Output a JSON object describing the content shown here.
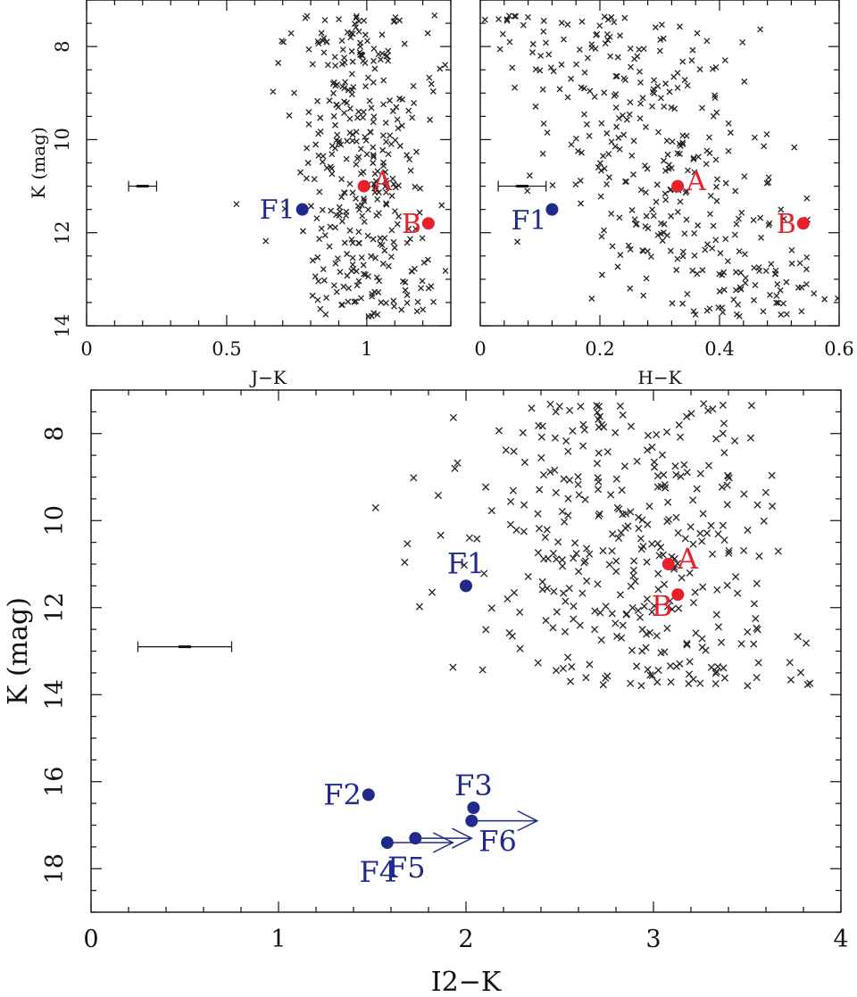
{
  "chart_data": [
    {
      "id": "panel_jk",
      "type": "scatter",
      "xlabel": "J−K",
      "ylabel": "K (mag)",
      "xlim": [
        0,
        1.3
      ],
      "ylim": [
        14,
        7
      ],
      "y_inverted": true,
      "xticks": [
        0,
        0.5,
        1
      ],
      "yticks": [
        8,
        10,
        12,
        14
      ],
      "error_bar": {
        "x": 0.2,
        "y": 11,
        "xerr": 0.05
      },
      "cloud": {
        "x_center": 0.98,
        "x_spread": 0.12,
        "y_center": 10.6,
        "y_spread": 1.6,
        "count": 360,
        "seed": 11
      },
      "highlighted": [
        {
          "name": "A",
          "x": 0.99,
          "y": 11.0,
          "color": "#e8202a",
          "label_pos": "right"
        },
        {
          "name": "B",
          "x": 1.22,
          "y": 11.8,
          "color": "#e8202a",
          "label_pos": "left"
        },
        {
          "name": "F1",
          "x": 0.77,
          "y": 11.5,
          "color": "#1f2a8a",
          "label_pos": "left"
        }
      ],
      "tick_labels_x": [
        "0",
        "0.5",
        "1"
      ],
      "tick_labels_y": [
        "8",
        "10",
        "12",
        "14"
      ]
    },
    {
      "id": "panel_hk",
      "type": "scatter",
      "xlabel": "H−K",
      "ylabel": "",
      "xlim": [
        0,
        0.6
      ],
      "ylim": [
        14,
        7
      ],
      "y_inverted": true,
      "xticks": [
        0,
        0.2,
        0.4,
        0.6
      ],
      "yticks": [
        8,
        10,
        12,
        14
      ],
      "error_bar": {
        "x": 0.07,
        "y": 11,
        "xerr": 0.04
      },
      "cloud": {
        "x_center": 0.3,
        "x_spread": 0.1,
        "y_center": 10.6,
        "y_spread": 1.6,
        "count": 360,
        "seed": 23
      },
      "highlighted": [
        {
          "name": "A",
          "x": 0.33,
          "y": 11.0,
          "color": "#e8202a",
          "label_pos": "right"
        },
        {
          "name": "B",
          "x": 0.54,
          "y": 11.8,
          "color": "#e8202a",
          "label_pos": "left"
        },
        {
          "name": "F1",
          "x": 0.12,
          "y": 11.5,
          "color": "#1f2a8a",
          "label_pos": "below-left"
        }
      ],
      "tick_labels_x": [
        "0",
        "0.2",
        "0.4",
        "0.6"
      ],
      "tick_labels_y": []
    },
    {
      "id": "panel_i2k",
      "type": "scatter",
      "xlabel": "I2−K",
      "ylabel": "K (mag)",
      "xlim": [
        0,
        4
      ],
      "ylim": [
        19,
        7
      ],
      "y_inverted": true,
      "xticks": [
        0,
        1,
        2,
        3,
        4
      ],
      "yticks": [
        8,
        10,
        12,
        14,
        16,
        18
      ],
      "error_bar": {
        "x": 0.5,
        "y": 12.9,
        "xerr": 0.25
      },
      "cloud": {
        "x_center": 2.9,
        "x_spread": 0.45,
        "y_center": 10.6,
        "y_spread": 1.6,
        "count": 360,
        "seed": 37
      },
      "highlighted": [
        {
          "name": "A",
          "x": 3.08,
          "y": 11.0,
          "color": "#e8202a",
          "label_pos": "right"
        },
        {
          "name": "B",
          "x": 3.13,
          "y": 11.7,
          "color": "#e8202a",
          "label_pos": "below-left"
        },
        {
          "name": "F1",
          "x": 2.0,
          "y": 11.5,
          "color": "#1f2a8a",
          "label_pos": "above"
        },
        {
          "name": "F2",
          "x": 1.48,
          "y": 16.3,
          "color": "#1f2a8a",
          "label_pos": "left"
        },
        {
          "name": "F3",
          "x": 2.04,
          "y": 16.6,
          "color": "#1f2a8a",
          "label_pos": "above"
        },
        {
          "name": "F4",
          "x": 1.58,
          "y": 17.4,
          "color": "#1f2a8a",
          "label_pos": "below"
        },
        {
          "name": "F5",
          "x": 1.73,
          "y": 17.3,
          "color": "#1f2a8a",
          "label_pos": "below"
        },
        {
          "name": "F6",
          "x": 2.03,
          "y": 16.9,
          "color": "#1f2a8a",
          "label_pos": "below-right"
        }
      ],
      "arrows": [
        {
          "from_x": 1.58,
          "to_x": 1.93,
          "y": 17.4
        },
        {
          "from_x": 1.73,
          "to_x": 2.03,
          "y": 17.3
        },
        {
          "from_x": 2.03,
          "to_x": 2.38,
          "y": 16.9
        }
      ],
      "tick_labels_x": [
        "0",
        "1",
        "2",
        "3",
        "4"
      ],
      "tick_labels_y": [
        "8",
        "10",
        "12",
        "14",
        "16",
        "18"
      ]
    }
  ],
  "colors": {
    "red": "#e8202a",
    "blue": "#1f2a8a",
    "cross": "#222222"
  }
}
